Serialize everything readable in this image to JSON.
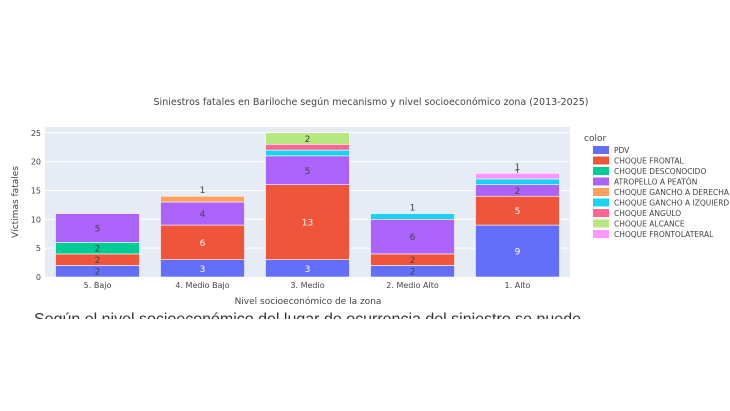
{
  "chart_data": {
    "type": "bar",
    "stacked": true,
    "title": "Siniestros fatales en Bariloche según mecanismo y nivel socioeconómico zona (2013-2025)",
    "xlabel": "Nivel socioeconómico de la zona",
    "ylabel": "Víctimas fatales",
    "ylim": [
      0,
      26
    ],
    "yticks": [
      0,
      5,
      10,
      15,
      20,
      25
    ],
    "grid": true,
    "legend_title": "color",
    "legend_position": "right",
    "categories": [
      "5. Bajo",
      "4. Medio Bajo",
      "3. Medio",
      "2. Medio Alto",
      "1. Alto"
    ],
    "series": [
      {
        "name": "PDV",
        "color": "#636efa",
        "values": [
          2,
          3,
          3,
          2,
          9
        ]
      },
      {
        "name": "CHOQUE FRONTAL",
        "color": "#ef553b",
        "values": [
          2,
          6,
          13,
          2,
          5
        ]
      },
      {
        "name": "CHOQUE DESCONOCIDO",
        "color": "#00cc96",
        "values": [
          2,
          0,
          0,
          0,
          0
        ]
      },
      {
        "name": "ATROPELLO A PEATÓN",
        "color": "#ab63fa",
        "values": [
          5,
          4,
          5,
          6,
          2
        ]
      },
      {
        "name": "CHOQUE GANCHO A DERECHA",
        "color": "#ffa15a",
        "values": [
          0,
          1,
          0,
          0,
          0
        ]
      },
      {
        "name": "CHOQUE GANCHO A IZQUIERD",
        "color": "#19d3f3",
        "values": [
          0,
          0,
          1,
          1,
          1
        ]
      },
      {
        "name": "CHOQUE ÁNGULO",
        "color": "#ff6692",
        "values": [
          0,
          0,
          1,
          0,
          0
        ]
      },
      {
        "name": "CHOQUE ALCANCE",
        "color": "#b6e880",
        "values": [
          0,
          0,
          2,
          0,
          0
        ]
      },
      {
        "name": "CHOQUE FRONTOLATERAL",
        "color": "#ff97ff",
        "values": [
          0,
          0,
          0,
          0,
          1
        ]
      }
    ]
  },
  "cut_text": "Según el nivel socioeconómico del lugar de ocurrencia del siniestro se puede"
}
